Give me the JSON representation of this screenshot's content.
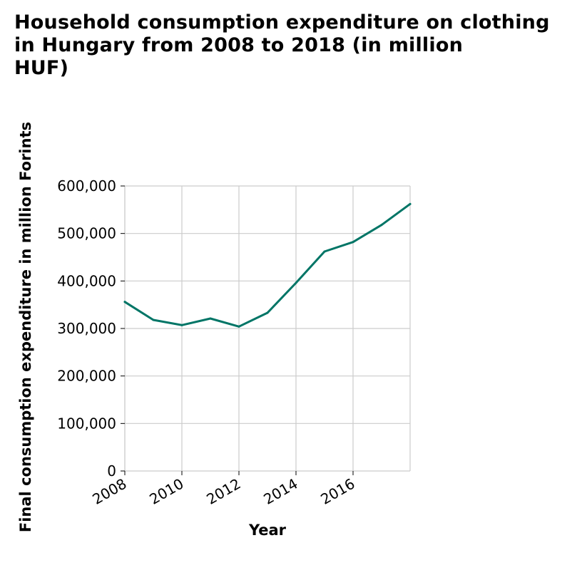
{
  "chart_data": {
    "type": "line",
    "title_lines": [
      "Household consumption expenditure on clothing",
      "in Hungary from 2008 to 2018 (in million",
      "HUF)"
    ],
    "xlabel": "Year",
    "ylabel": "Final consumption expenditure in million Forints",
    "x": [
      2008,
      2009,
      2010,
      2011,
      2012,
      2013,
      2014,
      2015,
      2016,
      2017,
      2018
    ],
    "series": [
      {
        "values": [
          356000,
          318000,
          307000,
          321000,
          304000,
          333000,
          396000,
          462000,
          482000,
          518000,
          562000
        ]
      }
    ],
    "xlim": [
      2008,
      2018
    ],
    "ylim": [
      0,
      600000
    ],
    "x_ticks": [
      2008,
      2010,
      2012,
      2014,
      2016
    ],
    "x_tick_labels": [
      "2008",
      "2010",
      "2012",
      "2014",
      "2016"
    ],
    "y_ticks": [
      0,
      100000,
      200000,
      300000,
      400000,
      500000,
      600000
    ],
    "y_tick_labels": [
      "0",
      "100,000",
      "200,000",
      "300,000",
      "400,000",
      "500,000",
      "600,000"
    ],
    "grid": true,
    "line_color": "#007566"
  }
}
